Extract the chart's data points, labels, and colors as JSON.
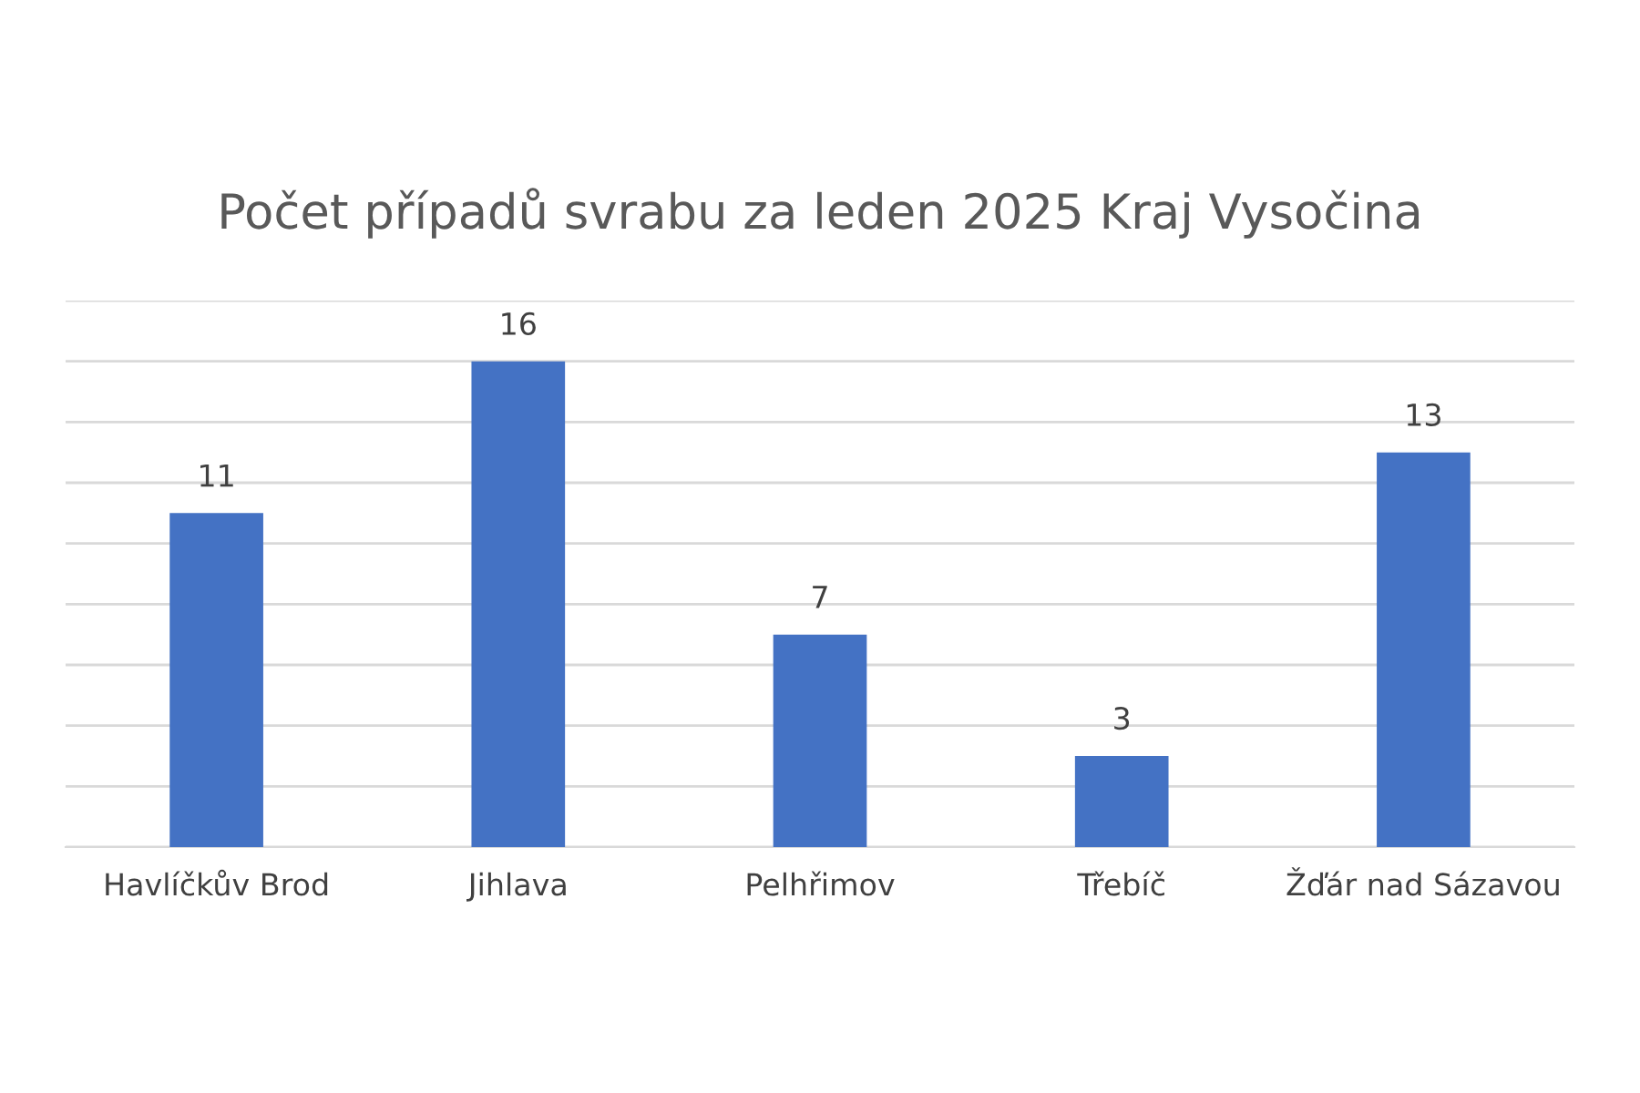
{
  "chart_data": {
    "type": "bar",
    "title": "Počet případů svrabu za leden 2025 Kraj Vysočina",
    "categories": [
      "Havlíčkův Brod",
      "Jihlava",
      "Pelhřimov",
      "Třebíč",
      "Žďár nad Sázavou"
    ],
    "values": [
      11,
      16,
      7,
      3,
      13
    ],
    "color": "#4472c4",
    "ylim": [
      0,
      18
    ],
    "yticks": [
      {
        "value": 0,
        "label": null
      },
      {
        "value": 2,
        "label": null
      },
      {
        "value": 4,
        "label": null
      },
      {
        "value": 6,
        "label": null
      },
      {
        "value": 8,
        "label": null
      },
      {
        "value": 10,
        "label": null
      },
      {
        "value": 12,
        "label": null
      },
      {
        "value": 14,
        "label": null
      },
      {
        "value": 16,
        "label": null
      },
      {
        "value": 18,
        "label": null
      }
    ],
    "tick_labels": "x",
    "grid": "y",
    "data_labels": true
  }
}
